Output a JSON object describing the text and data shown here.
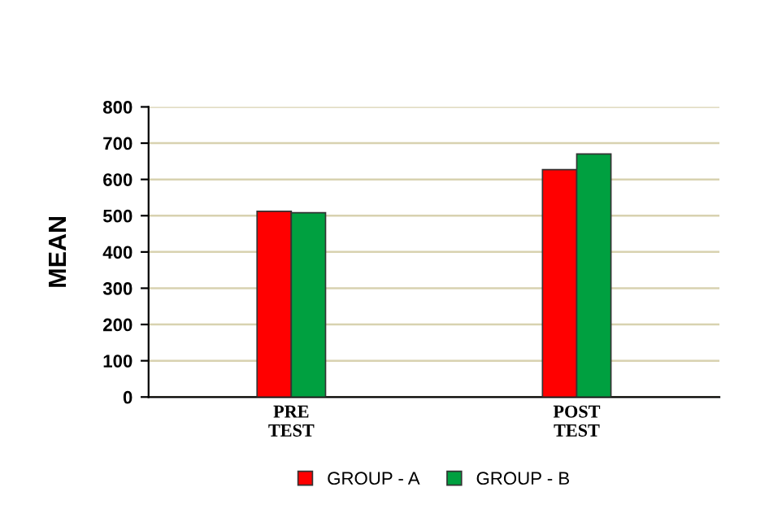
{
  "chart_data": {
    "type": "bar",
    "ylabel": "MEAN",
    "categories": [
      "PRE\nTEST",
      "POST\nTEST"
    ],
    "series": [
      {
        "name": "GROUP - A",
        "color": "#ff0000",
        "values": [
          512,
          627
        ]
      },
      {
        "name": "GROUP - B",
        "color": "#00a040",
        "values": [
          508,
          670
        ]
      }
    ],
    "ylim": [
      0,
      800
    ],
    "yticks": [
      0,
      100,
      200,
      300,
      400,
      500,
      600,
      700,
      800
    ],
    "grid": "y",
    "legend": "bottom"
  }
}
